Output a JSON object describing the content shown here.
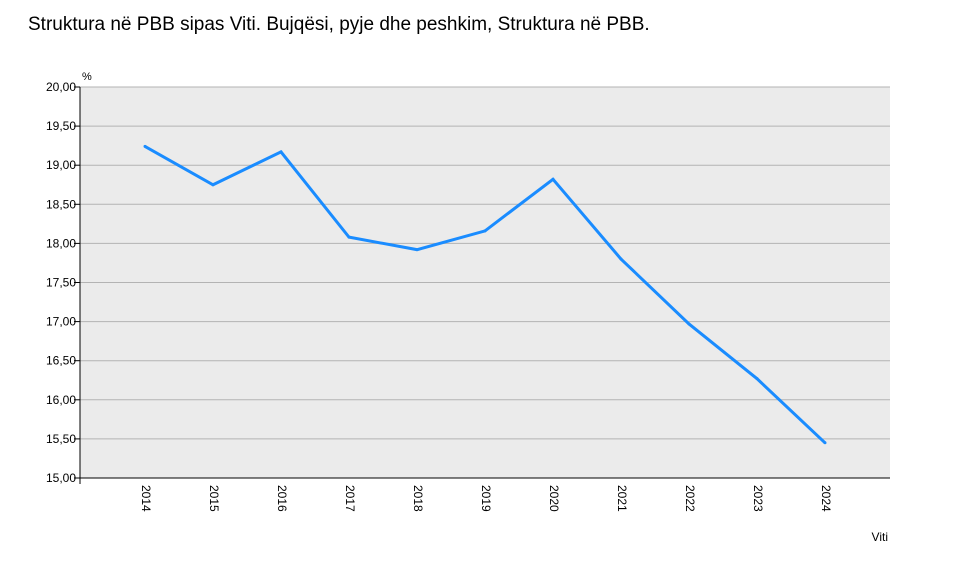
{
  "chart_data": {
    "type": "line",
    "title": "Struktura në PBB sipas Viti. Bujqësi, pyje dhe peshkim, Struktura në PBB.",
    "xlabel": "Viti",
    "ylabel": "%",
    "categories": [
      "2014",
      "2015",
      "2016",
      "2017",
      "2018",
      "2019",
      "2020",
      "2021",
      "2022",
      "2023",
      "2024"
    ],
    "series": [
      {
        "name": "",
        "values": [
          19.24,
          18.75,
          19.17,
          18.08,
          17.92,
          18.16,
          18.82,
          17.8,
          16.97,
          16.27,
          15.45
        ],
        "color": "#1a8cff"
      }
    ],
    "ylim": [
      15.0,
      20.0
    ],
    "yticks": [
      "15,00",
      "15,50",
      "16,00",
      "16,50",
      "17,00",
      "17,50",
      "18,00",
      "18,50",
      "19,00",
      "19,50",
      "20,00"
    ],
    "grid": true,
    "plot_background": "#ebebeb",
    "gridline_color": "#b3b3b3"
  }
}
